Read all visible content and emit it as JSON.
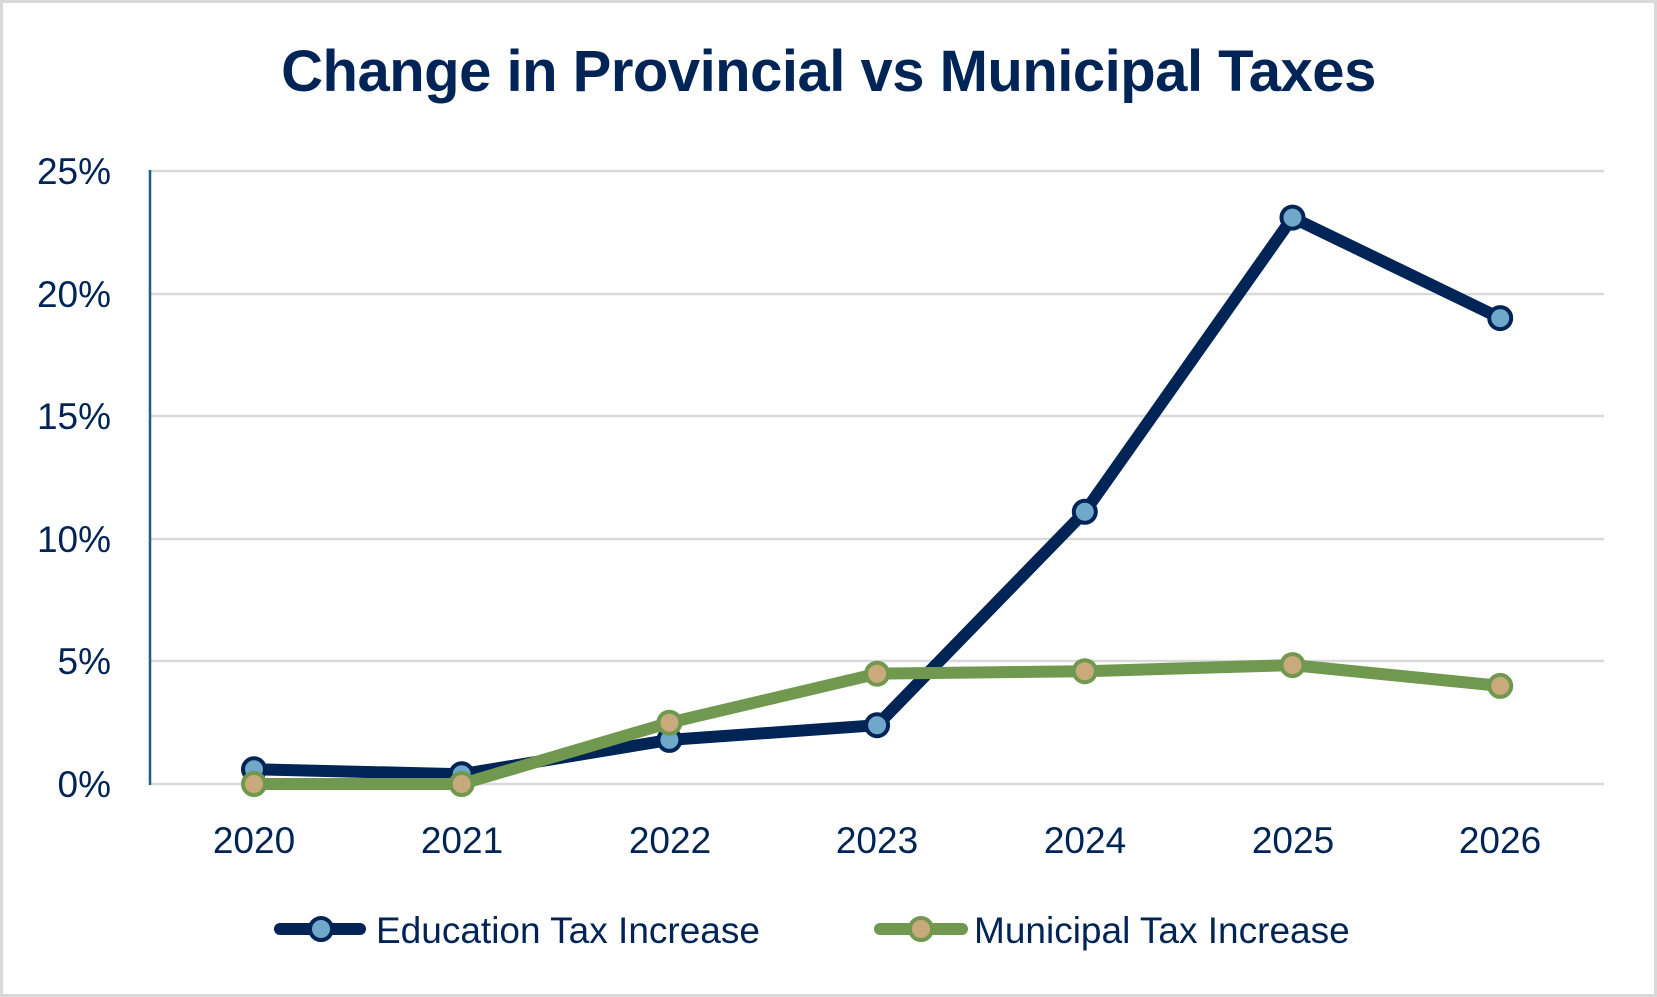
{
  "chart_data": {
    "type": "line",
    "title": "Change in Provincial vs Municipal Taxes",
    "xlabel": "",
    "ylabel": "",
    "categories": [
      "2020",
      "2021",
      "2022",
      "2023",
      "2024",
      "2025",
      "2026"
    ],
    "series": [
      {
        "name": "Education Tax Increase",
        "values": [
          0.6,
          0.4,
          1.8,
          2.4,
          11.1,
          23.1,
          19.0
        ],
        "line_color": "#002456",
        "marker_fill": "#6fa8c8"
      },
      {
        "name": "Municipal Tax Increase",
        "values": [
          0.0,
          0.0,
          2.5,
          4.5,
          4.6,
          4.85,
          4.0
        ],
        "line_color": "#70994f",
        "marker_fill": "#c8aa7d"
      }
    ],
    "ylim": [
      0,
      25
    ],
    "yticks": [
      0,
      5,
      10,
      15,
      20,
      25
    ],
    "ytick_labels": [
      "0%",
      "5%",
      "10%",
      "15%",
      "20%",
      "25%"
    ],
    "grid": true,
    "legend_position": "bottom"
  },
  "title": "Change in Provincial vs Municipal Taxes",
  "y_axis": {
    "ticks": [
      "25%",
      "20%",
      "15%",
      "10%",
      "5%",
      "0%"
    ]
  },
  "x_axis": {
    "ticks": [
      "2020",
      "2021",
      "2022",
      "2023",
      "2024",
      "2025",
      "2026"
    ]
  },
  "legend": {
    "items": [
      {
        "label": "Education Tax Increase"
      },
      {
        "label": "Municipal Tax Increase"
      }
    ]
  },
  "colors": {
    "title_text": "#002456",
    "axis_line": "#1f5f86",
    "gridline": "#d9d9d9",
    "border": "#d9d9d9",
    "education_line": "#002456",
    "education_marker": "#6fa8c8",
    "municipal_line": "#70994f",
    "municipal_marker": "#c8aa7d"
  }
}
